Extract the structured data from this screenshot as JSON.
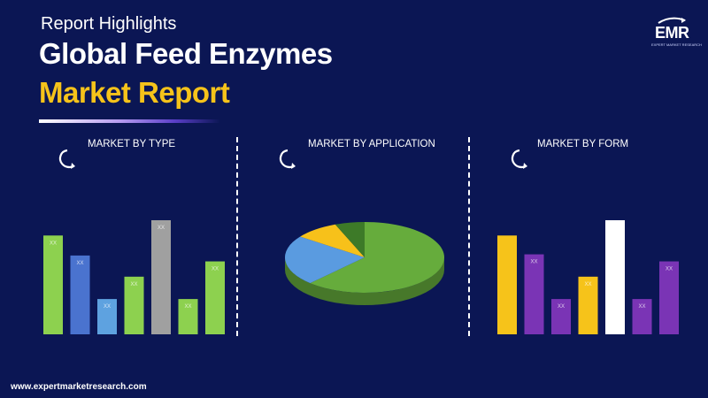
{
  "header": {
    "highlights": "Report Highlights",
    "title_line1": "Global Feed Enzymes",
    "title_line2": "Market Report"
  },
  "logo": {
    "text": "EMR",
    "subtitle": "EXPERT MARKET RESEARCH"
  },
  "footer": {
    "url": "www.expertmarketresearch.com"
  },
  "icons": {
    "section_icon": "circular-arrow-icon"
  },
  "colors": {
    "background": "#0b1654",
    "accent": "#f6c31a",
    "text": "#ffffff"
  },
  "chart_data": [
    {
      "type": "bar",
      "title": "MARKET BY TYPE",
      "categories": [
        "",
        "",
        "",
        "",
        "",
        "",
        ""
      ],
      "values": [
        84,
        67,
        30,
        49,
        97,
        30,
        62
      ],
      "labels": [
        "XX",
        "XX",
        "XX",
        "XX",
        "XX",
        "XX",
        "XX"
      ],
      "colors": [
        "#8dd14f",
        "#4a73cf",
        "#5ea2e0",
        "#8dd14f",
        "#a0a0a0",
        "#8dd14f",
        "#8dd14f"
      ],
      "ylim": [
        0,
        100
      ],
      "grid": false
    },
    {
      "type": "pie",
      "title": "MARKET BY APPLICATION",
      "values": [
        62,
        23,
        9,
        6
      ],
      "labels": [
        "",
        "",
        "",
        ""
      ],
      "colors": [
        "#66ac3c",
        "#5a9be0",
        "#f7c11a",
        "#3d7a28"
      ],
      "style": "3d"
    },
    {
      "type": "bar",
      "title": "MARKET BY FORM",
      "categories": [
        "",
        "",
        "",
        "",
        "",
        "",
        ""
      ],
      "values": [
        84,
        68,
        30,
        49,
        97,
        30,
        62
      ],
      "labels": [
        "",
        "XX",
        "XX",
        "XX",
        "",
        "XX",
        "XX"
      ],
      "colors": [
        "#f6c31a",
        "#7a34b5",
        "#7a34b5",
        "#f6c31a",
        "#ffffff",
        "#7a34b5",
        "#7a34b5"
      ],
      "ylim": [
        0,
        100
      ],
      "grid": false
    }
  ]
}
